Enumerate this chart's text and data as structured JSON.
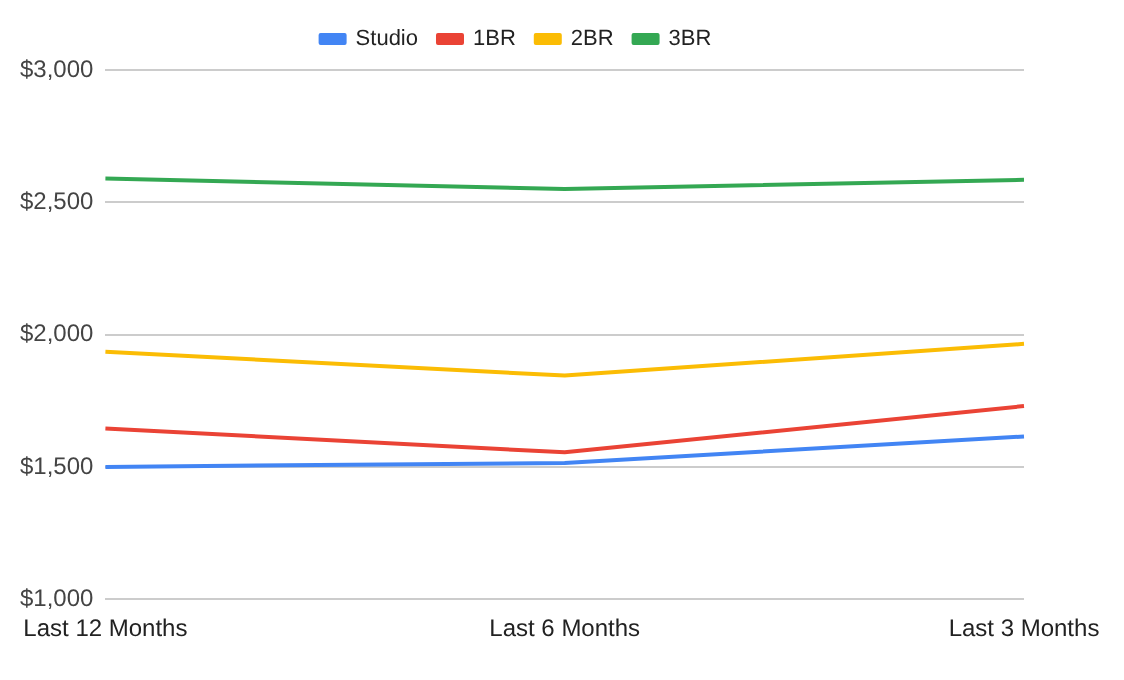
{
  "chart_data": {
    "type": "line",
    "categories": [
      "Last 12 Months",
      "Last 6 Months",
      "Last 3 Months"
    ],
    "series": [
      {
        "name": "Studio",
        "color": "#4285f4",
        "values": [
          1500,
          1515,
          1615
        ]
      },
      {
        "name": "1BR",
        "color": "#ea4335",
        "values": [
          1645,
          1555,
          1730
        ]
      },
      {
        "name": "2BR",
        "color": "#fbbc04",
        "values": [
          1935,
          1845,
          1965
        ]
      },
      {
        "name": "3BR",
        "color": "#34a853",
        "values": [
          2590,
          2550,
          2585
        ]
      }
    ],
    "ylim": [
      1000,
      3000
    ],
    "yticks": [
      {
        "value": 1000,
        "label": "$1,000"
      },
      {
        "value": 1500,
        "label": "$1,500"
      },
      {
        "value": 2000,
        "label": "$2,000"
      },
      {
        "value": 2500,
        "label": "$2,500"
      },
      {
        "value": 3000,
        "label": "$3,000"
      }
    ],
    "grid": "y",
    "legend": "top",
    "marker": "none"
  }
}
